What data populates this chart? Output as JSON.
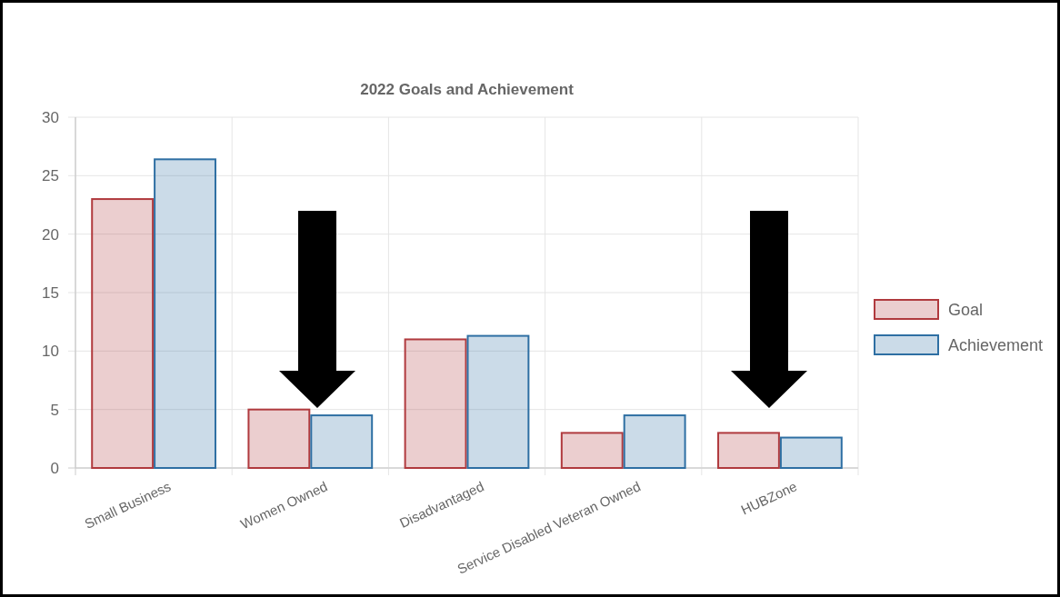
{
  "chart_data": {
    "type": "bar",
    "title": "2022 Goals and Achievement",
    "categories": [
      "Small Business",
      "Women Owned",
      "Disadvantaged",
      "Service Disabled Veteran Owned",
      "HUBZone"
    ],
    "series": [
      {
        "name": "Goal",
        "color": "#b03a3e",
        "values": [
          23,
          5,
          11,
          3,
          3
        ]
      },
      {
        "name": "Achievement",
        "color": "#2e6fa3",
        "values": [
          26.4,
          4.5,
          11.3,
          4.5,
          2.6
        ]
      }
    ],
    "ylim": [
      0,
      30
    ],
    "yticks": [
      0,
      5,
      10,
      15,
      20,
      25,
      30
    ],
    "grid": true,
    "legend": "right"
  }
}
